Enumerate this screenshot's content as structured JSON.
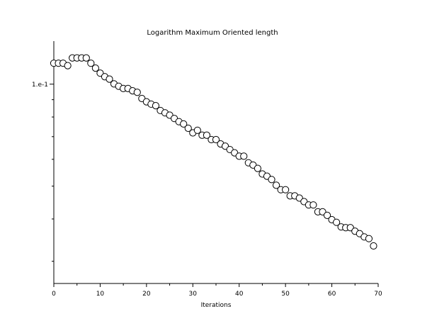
{
  "chart_data": {
    "type": "scatter",
    "title": "Logarithm Maximum Oriented length",
    "xlabel": "Iterations",
    "ylabel": "",
    "xlim": [
      0,
      70
    ],
    "ylim": [
      0.0258,
      0.134
    ],
    "yscale": "log",
    "grid": false,
    "legend": "none",
    "x_ticks": [
      0,
      10,
      20,
      30,
      40,
      50,
      60,
      70
    ],
    "y_major_ticks": [
      {
        "value": 0.1,
        "label": "1.e-1"
      }
    ],
    "y_minor_ticks": [
      0.09,
      0.08,
      0.07,
      0.06,
      0.05,
      0.04,
      0.03
    ],
    "marker": "open-circle",
    "series": [
      {
        "x": [
          0,
          1,
          2,
          3,
          4,
          5,
          6,
          7,
          8,
          9,
          10,
          11,
          12,
          13,
          14,
          15,
          16,
          17,
          18,
          19,
          20,
          21,
          22,
          23,
          24,
          25,
          26,
          27,
          28,
          29,
          30,
          31,
          32,
          33,
          34,
          35,
          36,
          37,
          38,
          39,
          40,
          41,
          42,
          43,
          44,
          45,
          46,
          47,
          48,
          49,
          50,
          51,
          52,
          53,
          54,
          55,
          56,
          57,
          58,
          59,
          60,
          61,
          62,
          63,
          64,
          65,
          66,
          67,
          68,
          69
        ],
        "y": [
          0.1153,
          0.1153,
          0.1153,
          0.1134,
          0.1195,
          0.1195,
          0.1195,
          0.1195,
          0.1153,
          0.1115,
          0.1078,
          0.1052,
          0.1035,
          0.1002,
          0.0986,
          0.0971,
          0.0971,
          0.0956,
          0.0946,
          0.0907,
          0.0887,
          0.0873,
          0.0864,
          0.0836,
          0.0823,
          0.081,
          0.0792,
          0.0775,
          0.0763,
          0.0741,
          0.0718,
          0.0731,
          0.0707,
          0.0707,
          0.0686,
          0.0686,
          0.0666,
          0.0656,
          0.0641,
          0.0627,
          0.0613,
          0.0613,
          0.0586,
          0.0577,
          0.0564,
          0.0543,
          0.0535,
          0.0523,
          0.0503,
          0.0488,
          0.0488,
          0.0468,
          0.0468,
          0.0461,
          0.045,
          0.044,
          0.044,
          0.042,
          0.042,
          0.041,
          0.0398,
          0.0391,
          0.0379,
          0.0377,
          0.0377,
          0.0368,
          0.0362,
          0.0354,
          0.035,
          0.0333
        ]
      }
    ]
  }
}
